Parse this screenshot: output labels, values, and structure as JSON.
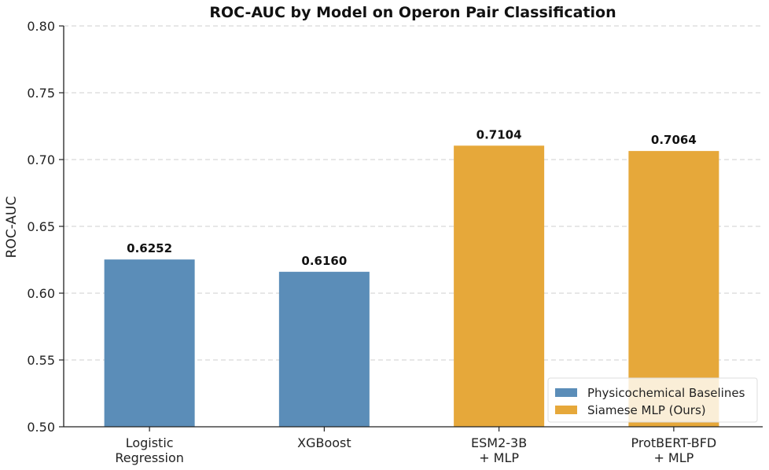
{
  "chart_data": {
    "type": "bar",
    "title": "ROC-AUC by Model on Operon Pair Classification",
    "xlabel": "",
    "ylabel": "ROC-AUC",
    "ylim": [
      0.5,
      0.8
    ],
    "yticks": [
      0.5,
      0.55,
      0.6,
      0.65,
      0.7,
      0.75,
      0.8
    ],
    "ytick_labels": [
      "0.50",
      "0.55",
      "0.60",
      "0.65",
      "0.70",
      "0.75",
      "0.80"
    ],
    "grid": "horizontal-dashed",
    "legend_position": "bottom-right",
    "categories": [
      [
        "Logistic",
        "Regression"
      ],
      [
        "XGBoost"
      ],
      [
        "ESM2-3B",
        "+ MLP"
      ],
      [
        "ProtBERT-BFD",
        "+ MLP"
      ]
    ],
    "values": [
      0.6252,
      0.616,
      0.7104,
      0.7064
    ],
    "value_labels": [
      "0.6252",
      "0.6160",
      "0.7104",
      "0.7064"
    ],
    "bar_groups": [
      0,
      0,
      1,
      1
    ],
    "legend": [
      {
        "label": "Physicochemical Baselines",
        "color": "#5b8db8"
      },
      {
        "label": "Siamese MLP (Ours)",
        "color": "#e6a83a"
      }
    ]
  }
}
